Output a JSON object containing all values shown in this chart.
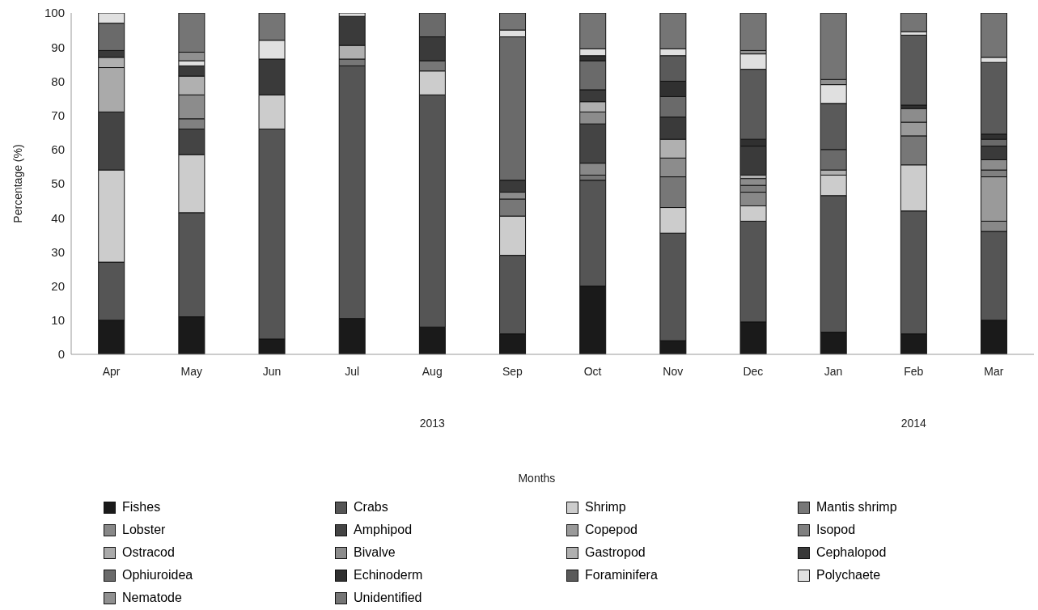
{
  "chart_data": {
    "type": "bar",
    "stacked": true,
    "ylabel": "Percentage (%)",
    "categories": [
      "Apr",
      "May",
      "Jun",
      "Jul",
      "Aug",
      "Sep",
      "Oct",
      "Nov",
      "Dec",
      "Jan",
      "Feb",
      "Mar"
    ],
    "annotations": [
      "2013",
      "2014",
      "Months"
    ],
    "ylim": [
      0,
      100
    ],
    "yticks": [
      0,
      10,
      20,
      30,
      40,
      50,
      60,
      70,
      80,
      90,
      100
    ],
    "legend": "bottom",
    "series": [
      {
        "name": "Fishes",
        "color": "#1a1a1a",
        "values": [
          10,
          11,
          4.5,
          10.5,
          8,
          6,
          20,
          4,
          9.5,
          6.5,
          6,
          10
        ]
      },
      {
        "name": "Crabs",
        "color": "#555555",
        "values": [
          17,
          30.5,
          61.5,
          74,
          68,
          23,
          31,
          31.5,
          29.5,
          40,
          36,
          26
        ]
      },
      {
        "name": "Shrimp",
        "color": "#cccccc",
        "values": [
          27,
          17,
          10,
          null,
          7,
          11.5,
          null,
          7.5,
          4.5,
          6,
          13.5,
          null
        ]
      },
      {
        "name": "Mantis shrimp",
        "color": "#777777",
        "values": [
          null,
          null,
          null,
          2,
          3,
          5,
          1.5,
          9,
          null,
          null,
          8.5,
          null
        ]
      },
      {
        "name": "Lobster",
        "color": "#888888",
        "values": [
          null,
          null,
          null,
          null,
          null,
          null,
          3.5,
          null,
          4,
          null,
          null,
          3
        ]
      },
      {
        "name": "Amphipod",
        "color": "#444444",
        "values": [
          17,
          7.5,
          null,
          null,
          null,
          null,
          11.5,
          null,
          null,
          null,
          null,
          null
        ]
      },
      {
        "name": "Copepod",
        "color": "#9a9a9a",
        "values": [
          null,
          null,
          null,
          null,
          null,
          null,
          null,
          null,
          null,
          null,
          4,
          13
        ]
      },
      {
        "name": "Isopod",
        "color": "#808080",
        "values": [
          null,
          3,
          null,
          null,
          null,
          null,
          null,
          null,
          2,
          null,
          null,
          2
        ]
      },
      {
        "name": "Ostracod",
        "color": "#aaaaaa",
        "values": [
          13,
          null,
          null,
          null,
          null,
          null,
          null,
          null,
          null,
          null,
          null,
          null
        ]
      },
      {
        "name": "Bivalve",
        "color": "#8c8c8c",
        "values": [
          null,
          7,
          null,
          null,
          null,
          2,
          3.5,
          5.5,
          2,
          null,
          4,
          3
        ]
      },
      {
        "name": "Gastropod",
        "color": "#b0b0b0",
        "values": [
          3,
          5.5,
          null,
          4,
          null,
          null,
          3,
          5.5,
          1,
          1.5,
          null,
          null
        ]
      },
      {
        "name": "Cephalopod",
        "color": "#3a3a3a",
        "values": [
          2,
          3,
          10.5,
          8.5,
          7,
          3.5,
          3.5,
          6.5,
          8.5,
          null,
          null,
          4
        ]
      },
      {
        "name": "Ophiuroidea",
        "color": "#6a6a6a",
        "values": [
          8,
          null,
          null,
          null,
          7,
          42,
          8.5,
          6,
          null,
          6,
          null,
          2
        ]
      },
      {
        "name": "Echinoderm",
        "color": "#303030",
        "values": [
          null,
          null,
          null,
          null,
          null,
          null,
          1.5,
          4.5,
          2,
          null,
          1,
          1.5
        ]
      },
      {
        "name": "Foraminifera",
        "color": "#5a5a5a",
        "values": [
          null,
          null,
          null,
          null,
          null,
          null,
          null,
          7.5,
          20.5,
          13.5,
          20.5,
          21
        ]
      },
      {
        "name": "Polychaete",
        "color": "#e0e0e0",
        "values": [
          3,
          1.5,
          5.5,
          1,
          null,
          2,
          2,
          2,
          4.5,
          5.5,
          1,
          1.5
        ]
      },
      {
        "name": "Nematode",
        "color": "#909090",
        "values": [
          null,
          2.5,
          null,
          null,
          null,
          null,
          null,
          null,
          1,
          1.5,
          null,
          null
        ]
      },
      {
        "name": "Unidentified",
        "color": "#757575",
        "values": [
          null,
          11.5,
          8,
          null,
          null,
          5,
          10.5,
          10.5,
          11,
          19.5,
          5.5,
          13
        ]
      }
    ]
  }
}
